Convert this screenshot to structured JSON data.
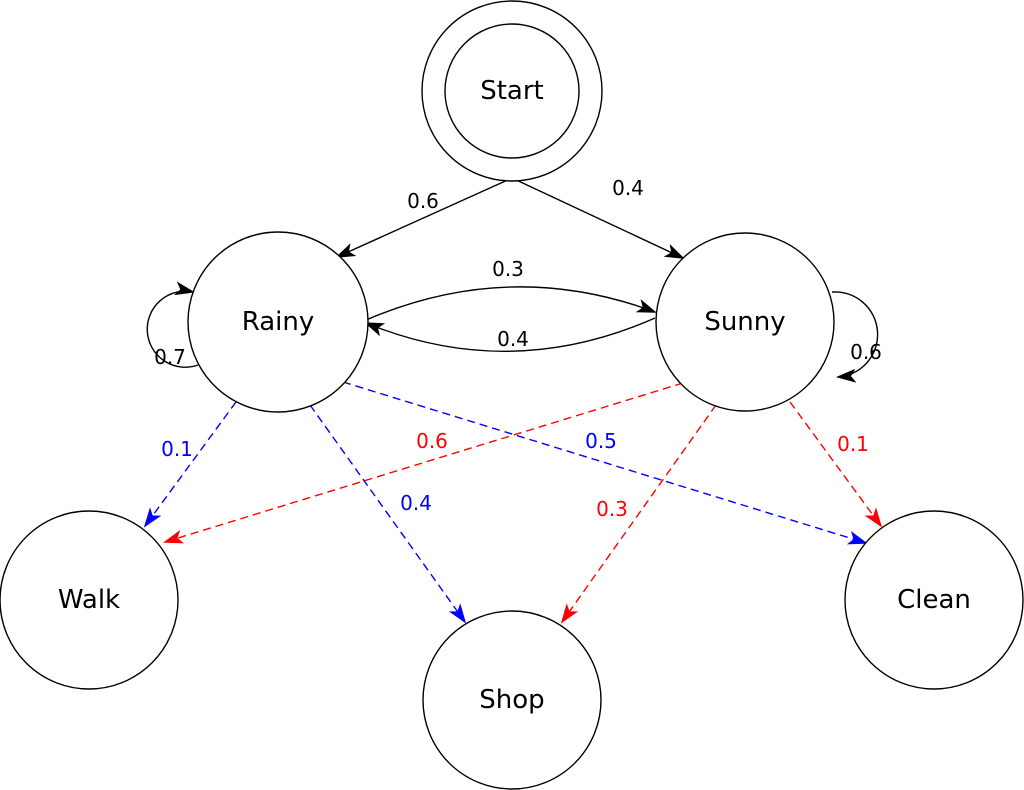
{
  "colors": {
    "transition": "#000000",
    "emission_rainy": "#0000ff",
    "emission_sunny": "#ff0000"
  },
  "nodes": [
    {
      "id": "start",
      "label": "Start",
      "kind": "initial"
    },
    {
      "id": "rainy",
      "label": "Rainy",
      "kind": "hidden-state"
    },
    {
      "id": "sunny",
      "label": "Sunny",
      "kind": "hidden-state"
    },
    {
      "id": "walk",
      "label": "Walk",
      "kind": "observation"
    },
    {
      "id": "shop",
      "label": "Shop",
      "kind": "observation"
    },
    {
      "id": "clean",
      "label": "Clean",
      "kind": "observation"
    }
  ],
  "edges": [
    {
      "id": "start-rainy",
      "from": "Start",
      "to": "Rainy",
      "label": "0.6",
      "style": "solid",
      "color": "#000000"
    },
    {
      "id": "start-sunny",
      "from": "Start",
      "to": "Sunny",
      "label": "0.4",
      "style": "solid",
      "color": "#000000"
    },
    {
      "id": "rainy-sunny",
      "from": "Rainy",
      "to": "Sunny",
      "label": "0.3",
      "style": "solid",
      "color": "#000000"
    },
    {
      "id": "sunny-rainy",
      "from": "Sunny",
      "to": "Rainy",
      "label": "0.4",
      "style": "solid",
      "color": "#000000"
    },
    {
      "id": "rainy-rainy",
      "from": "Rainy",
      "to": "Rainy",
      "label": "0.7",
      "style": "solid",
      "color": "#000000"
    },
    {
      "id": "sunny-sunny",
      "from": "Sunny",
      "to": "Sunny",
      "label": "0.6",
      "style": "solid",
      "color": "#000000"
    },
    {
      "id": "rainy-walk",
      "from": "Rainy",
      "to": "Walk",
      "label": "0.1",
      "style": "dashed",
      "color": "#0000ff"
    },
    {
      "id": "rainy-shop",
      "from": "Rainy",
      "to": "Shop",
      "label": "0.4",
      "style": "dashed",
      "color": "#0000ff"
    },
    {
      "id": "rainy-clean",
      "from": "Rainy",
      "to": "Clean",
      "label": "0.5",
      "style": "dashed",
      "color": "#0000ff"
    },
    {
      "id": "sunny-walk",
      "from": "Sunny",
      "to": "Walk",
      "label": "0.6",
      "style": "dashed",
      "color": "#ff0000"
    },
    {
      "id": "sunny-shop",
      "from": "Sunny",
      "to": "Shop",
      "label": "0.3",
      "style": "dashed",
      "color": "#ff0000"
    },
    {
      "id": "sunny-clean",
      "from": "Sunny",
      "to": "Clean",
      "label": "0.1",
      "style": "dashed",
      "color": "#ff0000"
    }
  ]
}
